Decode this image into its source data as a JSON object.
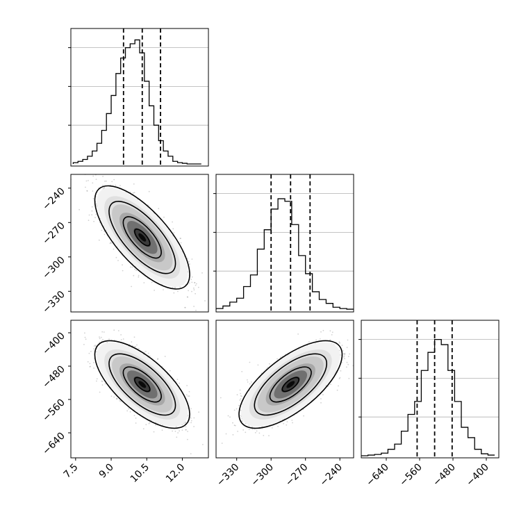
{
  "chart_data": {
    "type": "corner",
    "parameters": [
      "",
      "",
      ""
    ],
    "grid": true,
    "quantile_lines": "dashed",
    "panels": [
      {
        "type": "histogram",
        "row": 0,
        "col": 0,
        "xlim": [
          7.3,
          13.1
        ],
        "bins": [
          7.4,
          7.6,
          7.8,
          8.0,
          8.2,
          8.4,
          8.6,
          8.8,
          9.0,
          9.2,
          9.4,
          9.6,
          9.8,
          10.0,
          10.2,
          10.4,
          10.6,
          10.8,
          11.0,
          11.2,
          11.4,
          11.6,
          11.8,
          12.0,
          12.2,
          12.4,
          12.6,
          12.8
        ],
        "counts": [
          0.01,
          0.02,
          0.035,
          0.06,
          0.1,
          0.16,
          0.26,
          0.39,
          0.53,
          0.7,
          0.82,
          0.9,
          0.93,
          0.96,
          0.86,
          0.64,
          0.45,
          0.3,
          0.18,
          0.1,
          0.06,
          0.02,
          0.01,
          0.005,
          0.0,
          0.0,
          0.0
        ],
        "quantiles": [
          9.52,
          10.31,
          11.08
        ],
        "xticks": [],
        "yticks": []
      },
      {
        "type": "histogram",
        "row": 1,
        "col": 1,
        "xlim": [
          -348,
          -228
        ],
        "bins": [
          -348,
          -342,
          -336,
          -330,
          -324,
          -318,
          -312,
          -306,
          -300,
          -294,
          -288,
          -282,
          -276,
          -270,
          -264,
          -258,
          -252,
          -246,
          -240,
          -234,
          -228
        ],
        "counts": [
          0.01,
          0.03,
          0.06,
          0.09,
          0.18,
          0.27,
          0.47,
          0.62,
          0.78,
          0.86,
          0.84,
          0.66,
          0.42,
          0.28,
          0.14,
          0.08,
          0.05,
          0.02,
          0.01,
          0.005
        ],
        "quantiles": [
          -300,
          -283,
          -266
        ],
        "xticks": [],
        "yticks": []
      },
      {
        "type": "histogram",
        "row": 2,
        "col": 2,
        "xlim": [
          -700,
          -370
        ],
        "bins": [
          -700,
          -684,
          -668,
          -652,
          -636,
          -620,
          -604,
          -588,
          -572,
          -556,
          -540,
          -524,
          -508,
          -492,
          -476,
          -460,
          -444,
          -428,
          -412,
          -396,
          -380
        ],
        "counts": [
          0.0,
          0.005,
          0.01,
          0.02,
          0.05,
          0.09,
          0.19,
          0.32,
          0.42,
          0.66,
          0.8,
          0.9,
          0.86,
          0.66,
          0.42,
          0.22,
          0.14,
          0.05,
          0.015,
          0.005
        ],
        "quantiles": [
          -566,
          -524,
          -482
        ],
        "xticks": [
          "−640",
          "−560",
          "−480",
          "−400"
        ],
        "xtick_values": [
          -640,
          -560,
          -480,
          -400
        ],
        "yticks": []
      },
      {
        "type": "density2d",
        "row": 1,
        "col": 0,
        "xlim": [
          7.3,
          13.1
        ],
        "ylim": [
          -348,
          -228
        ],
        "mean": [
          10.31,
          -283
        ],
        "sd": [
          0.8,
          18
        ],
        "rho": -0.72,
        "yticks": [
          "−240",
          "−270",
          "−300",
          "−330"
        ],
        "ytick_values": [
          -240,
          -270,
          -300,
          -330
        ]
      },
      {
        "type": "density2d",
        "row": 2,
        "col": 0,
        "xlim": [
          7.3,
          13.1
        ],
        "ylim": [
          -700,
          -370
        ],
        "mean": [
          10.31,
          -524
        ],
        "sd": [
          0.8,
          42
        ],
        "rho": -0.68,
        "xticks": [
          "7.5",
          "9.0",
          "10.5",
          "12.0"
        ],
        "xtick_values": [
          7.5,
          9.0,
          10.5,
          12.0
        ],
        "yticks": [
          "−400",
          "−480",
          "−560",
          "−640"
        ],
        "ytick_values": [
          -400,
          -480,
          -560,
          -640
        ]
      },
      {
        "type": "density2d",
        "row": 2,
        "col": 1,
        "xlim": [
          -348,
          -228
        ],
        "ylim": [
          -700,
          -370
        ],
        "mean": [
          -283,
          -524
        ],
        "sd": [
          18,
          42
        ],
        "rho": 0.68,
        "xticks": [
          "−330",
          "−300",
          "−270",
          "−240"
        ],
        "xtick_values": [
          -330,
          -300,
          -270,
          -240
        ]
      }
    ]
  }
}
